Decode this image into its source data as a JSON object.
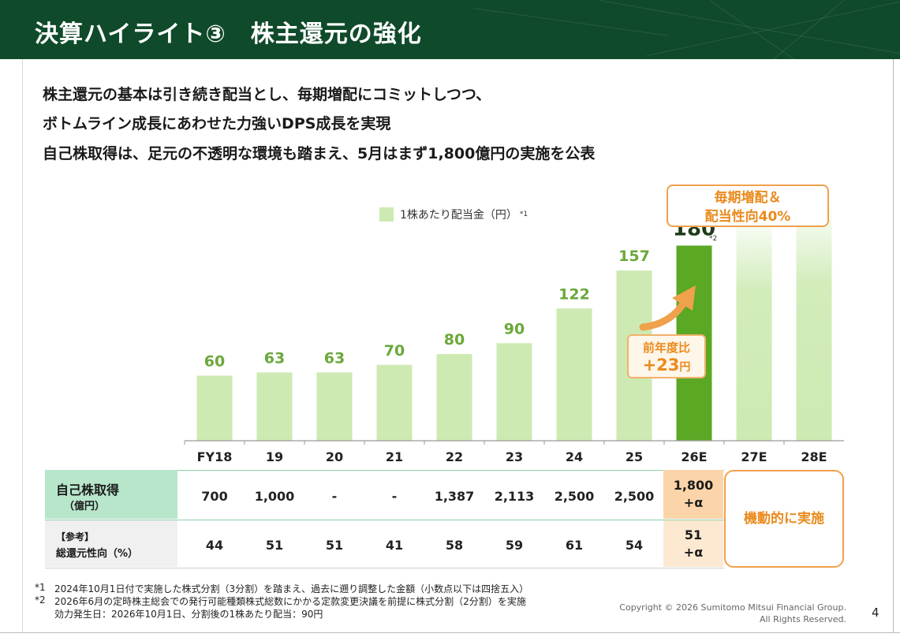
{
  "header": {
    "title": "決算ハイライト③　株主還元の強化"
  },
  "lead": {
    "line1": "株主還元の基本は引き続き配当とし、毎期増配にコミットしつつ、",
    "line2": "ボトムライン成長にあわせた力強いDPS成長を実現",
    "line3": "自己株取得は、足元の不透明な環境も踏まえ、5月はまず1,800億円の実施を公表"
  },
  "legend": {
    "label": "1株あたり配当金（円）",
    "note": "*1"
  },
  "policy_box": {
    "line1": "毎期増配＆",
    "line2": "配当性向40%"
  },
  "yoy_box": {
    "line1": "前年度比",
    "value": "+23",
    "unit": "円"
  },
  "colors": {
    "header_bg": "#0f4a2a",
    "bar_light": "#cdeab3",
    "bar_highlight": "#5aa824",
    "value_green": "#6aa83a",
    "accent_orange": "#ea8a1c"
  },
  "chart_data": {
    "type": "bar",
    "categories": [
      "FY18",
      "19",
      "20",
      "21",
      "22",
      "23",
      "24",
      "25",
      "26E",
      "27E",
      "28E"
    ],
    "values": [
      60,
      63,
      63,
      70,
      80,
      90,
      122,
      157,
      180,
      null,
      null
    ],
    "value_labels": [
      "60",
      "63",
      "63",
      "70",
      "80",
      "90",
      "122",
      "157",
      "180",
      "",
      ""
    ],
    "highlight_index": 8,
    "value_note": "*2",
    "legend": "1株あたり配当金（円）*1",
    "ylim": [
      0,
      200
    ]
  },
  "table": {
    "row1": {
      "label_main": "自己株取得",
      "label_sub": "（億円）",
      "values": [
        "700",
        "1,000",
        "-",
        "-",
        "1,387",
        "2,113",
        "2,500",
        "2,500"
      ],
      "fy26": [
        "1,800",
        "+α"
      ]
    },
    "row2": {
      "label_main": "【参考】",
      "label_sub": "総還元性向（%）",
      "values": [
        "44",
        "51",
        "51",
        "41",
        "58",
        "59",
        "61",
        "54"
      ],
      "fy26": [
        "51",
        "+α"
      ]
    },
    "flexible": "機動的に実施"
  },
  "footnotes": {
    "n1_mark": "*1",
    "n1": "2024年10月1日付で実施した株式分割（3分割）を踏まえ、過去に遡り調整した金額（小数点以下は四捨五入）",
    "n2_mark": "*2",
    "n2": "2026年6月の定時株主総会での発行可能種類株式総数にかかる定款変更決議を前提に株式分割（2分割）を実施",
    "n2b": "効力発生日：2026年10月1日、分割後の1株あたり配当：90円"
  },
  "copyright": {
    "line1": "Copyright © 2026 Sumitomo Mitsui Financial Group.",
    "line2": "All Rights Reserved."
  },
  "page_number": "4"
}
